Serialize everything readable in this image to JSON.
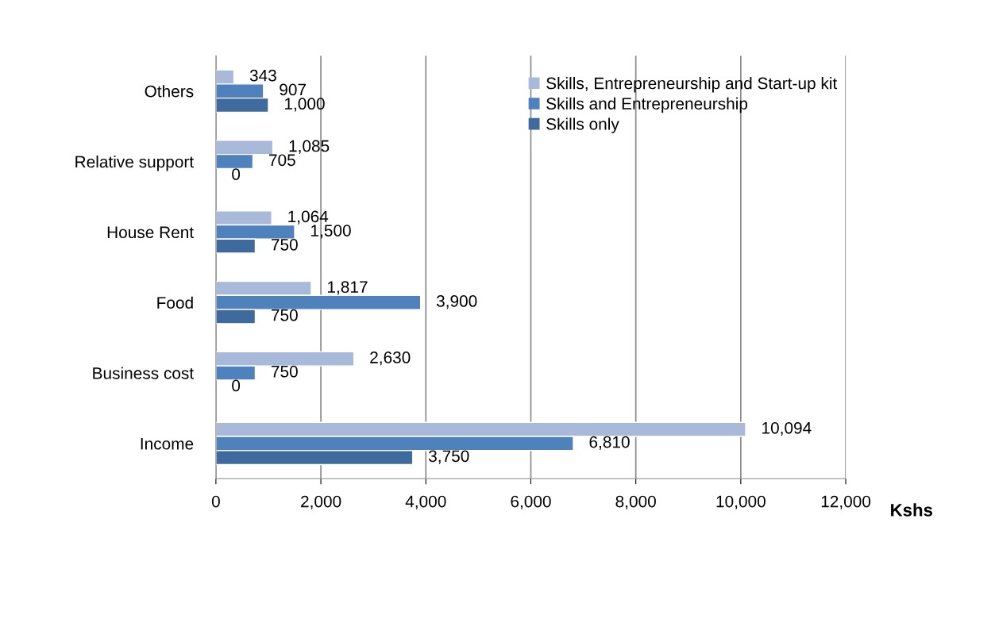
{
  "chart_data": {
    "type": "bar",
    "orientation": "horizontal",
    "xlabel": "Kshs",
    "categories": [
      "Others",
      "Relative support",
      "House Rent",
      "Food",
      "Business cost",
      "Income"
    ],
    "series": [
      {
        "name": "Skills, Entrepreneurship and Start-up kit",
        "color": "#a9b9da",
        "values": [
          343,
          1085,
          1064,
          1817,
          2630,
          10094
        ],
        "value_labels": [
          "343",
          "1,085",
          "1,064",
          "1,817",
          "2,630",
          "10,094"
        ]
      },
      {
        "name": "Skills and Entrepreneurship",
        "color": "#4f81bd",
        "values": [
          907,
          705,
          1500,
          3900,
          750,
          6810
        ],
        "value_labels": [
          "907",
          "705",
          "1,500",
          "3,900",
          "750",
          "6,810"
        ]
      },
      {
        "name": "Skills only",
        "color": "#3e6a9e",
        "values": [
          1000,
          0,
          750,
          750,
          0,
          3750
        ],
        "value_labels": [
          "1,000",
          "0",
          "750",
          "750",
          "0",
          "3,750"
        ]
      }
    ],
    "xlim": [
      0,
      12000
    ],
    "xticks": [
      0,
      {
        "value": 2000,
        "label": "2,000"
      },
      {
        "value": 4000,
        "label": "4,000"
      },
      {
        "value": 6000,
        "label": "6,000"
      },
      {
        "value": 8000,
        "label": "8,000"
      },
      {
        "value": 10000,
        "label": "10,000"
      },
      {
        "value": 12000,
        "label": "12,000"
      }
    ],
    "grid": "x",
    "legend": "top right"
  }
}
